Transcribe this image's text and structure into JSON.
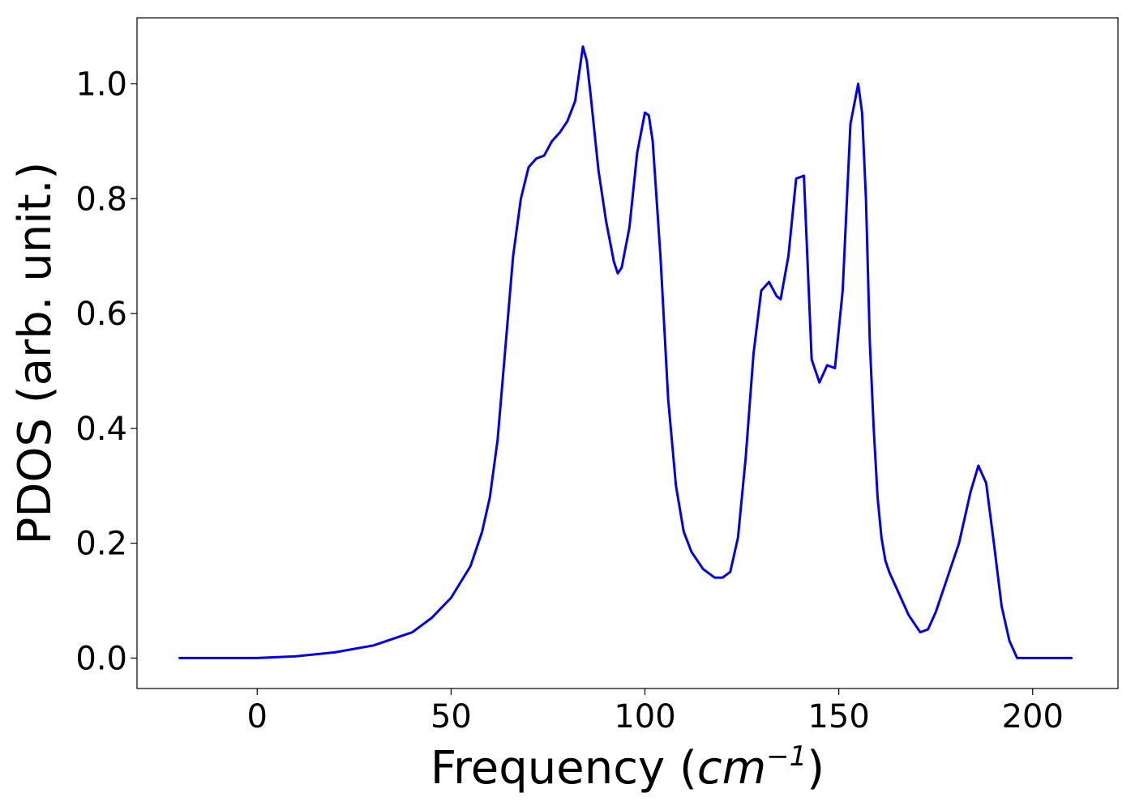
{
  "chart_data": {
    "type": "line",
    "title": "",
    "xlabel": "Frequency",
    "xlabel_unit": "cm",
    "xlabel_unit_exponent": "−1",
    "ylabel": "PDOS (arb. unit.)",
    "xlim": [
      -31,
      222
    ],
    "ylim": [
      -0.053,
      1.115
    ],
    "xticks": [
      0,
      50,
      100,
      150,
      200
    ],
    "xtick_labels": [
      "0",
      "50",
      "100",
      "150",
      "200"
    ],
    "yticks": [
      0.0,
      0.2,
      0.4,
      0.6,
      0.8,
      1.0
    ],
    "ytick_labels": [
      "0.0",
      "0.2",
      "0.4",
      "0.6",
      "0.8",
      "1.0"
    ],
    "grid": false,
    "legend": "none",
    "series": [
      {
        "color": "#0000ee",
        "x": [
          -20,
          0,
          10,
          20,
          30,
          40,
          45,
          50,
          55,
          58,
          60,
          62,
          64,
          66,
          68,
          70,
          72,
          74,
          76,
          78,
          80,
          82,
          84,
          85,
          86,
          88,
          90,
          92,
          93,
          94,
          96,
          98,
          100,
          101,
          102,
          104,
          106,
          108,
          110,
          112,
          115,
          118,
          120,
          122,
          124,
          126,
          128,
          130,
          132,
          134,
          135,
          137,
          139,
          141,
          143,
          145,
          147,
          149,
          151,
          153,
          155,
          156,
          157,
          158,
          159,
          160,
          161,
          162,
          163,
          165,
          168,
          171,
          173,
          175,
          178,
          181,
          184,
          186,
          188,
          190,
          192,
          194,
          196,
          200,
          210
        ],
        "y": [
          0.0,
          0.0,
          0.003,
          0.01,
          0.022,
          0.045,
          0.07,
          0.105,
          0.16,
          0.22,
          0.28,
          0.38,
          0.54,
          0.7,
          0.8,
          0.855,
          0.87,
          0.875,
          0.9,
          0.915,
          0.935,
          0.97,
          1.065,
          1.04,
          0.98,
          0.85,
          0.76,
          0.69,
          0.67,
          0.68,
          0.75,
          0.88,
          0.95,
          0.945,
          0.9,
          0.7,
          0.45,
          0.3,
          0.22,
          0.185,
          0.155,
          0.14,
          0.14,
          0.15,
          0.21,
          0.35,
          0.53,
          0.64,
          0.655,
          0.63,
          0.625,
          0.7,
          0.835,
          0.84,
          0.52,
          0.48,
          0.51,
          0.505,
          0.64,
          0.93,
          1.0,
          0.95,
          0.8,
          0.55,
          0.4,
          0.28,
          0.21,
          0.17,
          0.15,
          0.12,
          0.075,
          0.045,
          0.05,
          0.08,
          0.14,
          0.2,
          0.29,
          0.335,
          0.305,
          0.2,
          0.09,
          0.03,
          0.0,
          0.0,
          0.0
        ]
      }
    ]
  }
}
